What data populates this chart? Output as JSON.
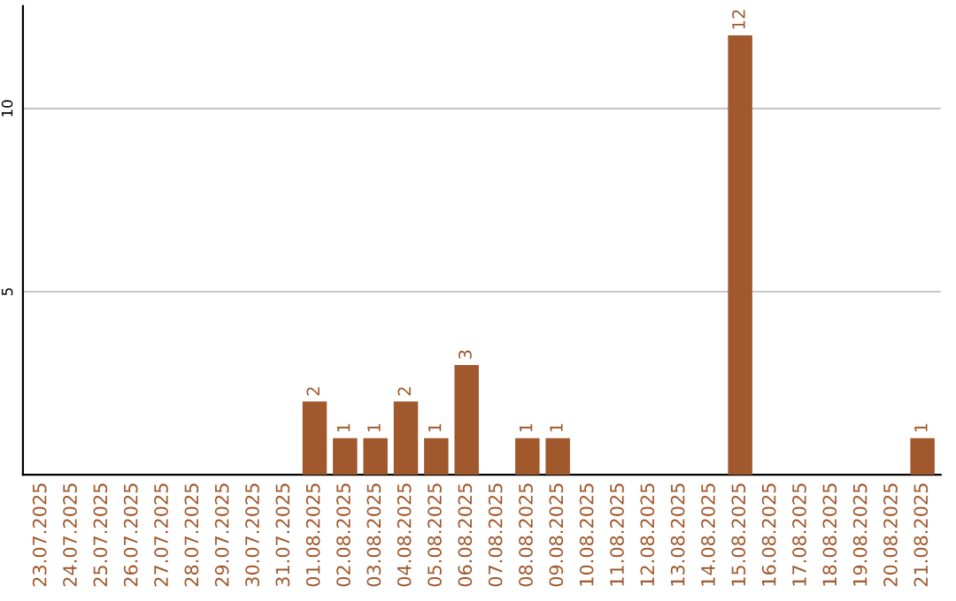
{
  "chart_data": {
    "type": "bar",
    "categories": [
      "23.07.2025",
      "24.07.2025",
      "25.07.2025",
      "26.07.2025",
      "27.07.2025",
      "28.07.2025",
      "29.07.2025",
      "30.07.2025",
      "31.07.2025",
      "01.08.2025",
      "02.08.2025",
      "03.08.2025",
      "04.08.2025",
      "05.08.2025",
      "06.08.2025",
      "07.08.2025",
      "08.08.2025",
      "09.08.2025",
      "10.08.2025",
      "11.08.2025",
      "12.08.2025",
      "13.08.2025",
      "14.08.2025",
      "15.08.2025",
      "16.08.2025",
      "17.08.2025",
      "18.08.2025",
      "19.08.2025",
      "20.08.2025",
      "21.08.2025"
    ],
    "values": [
      0,
      0,
      0,
      0,
      0,
      0,
      0,
      0,
      0,
      2,
      1,
      1,
      2,
      1,
      3,
      0,
      1,
      1,
      0,
      0,
      0,
      0,
      0,
      12,
      0,
      0,
      0,
      0,
      0,
      1
    ],
    "value_labels": [
      null,
      null,
      null,
      null,
      null,
      null,
      null,
      null,
      null,
      "2",
      "1",
      "1",
      "2",
      "1",
      "3",
      null,
      "1",
      "1",
      null,
      null,
      null,
      null,
      null,
      "12",
      null,
      null,
      null,
      null,
      null,
      "1"
    ],
    "color": "#a0582c",
    "ylim": [
      0,
      12.8
    ],
    "yticks": [
      5,
      10
    ],
    "grid": "y",
    "legend": false
  }
}
